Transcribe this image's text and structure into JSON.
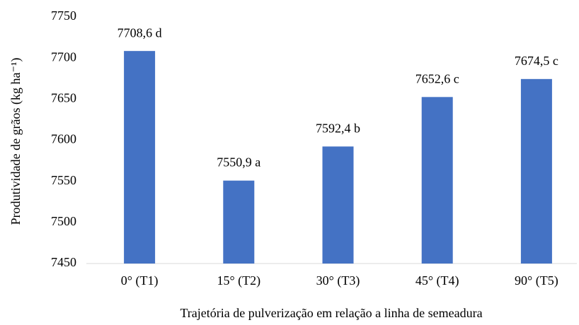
{
  "chart_data": {
    "type": "bar",
    "ylabel": "Produtividade de grãos (kg ha⁻¹)",
    "xlabel": "Trajetória de pulverização em relação a linha de semeadura",
    "categories": [
      "0° (T1)",
      "15° (T2)",
      "30° (T3)",
      "45° (T4)",
      "90° (T5)"
    ],
    "values": [
      7708.6,
      7550.9,
      7592.4,
      7652.6,
      7674.5
    ],
    "value_labels": [
      "7708,6 d",
      "7550,9 a",
      "7592,4 b",
      "7652,6 c",
      "7674,5 c"
    ],
    "color": "#4472c4",
    "ylim": [
      7450,
      7750
    ],
    "yticks": [
      7450,
      7500,
      7550,
      7600,
      7650,
      7700,
      7750
    ],
    "grid": false
  }
}
